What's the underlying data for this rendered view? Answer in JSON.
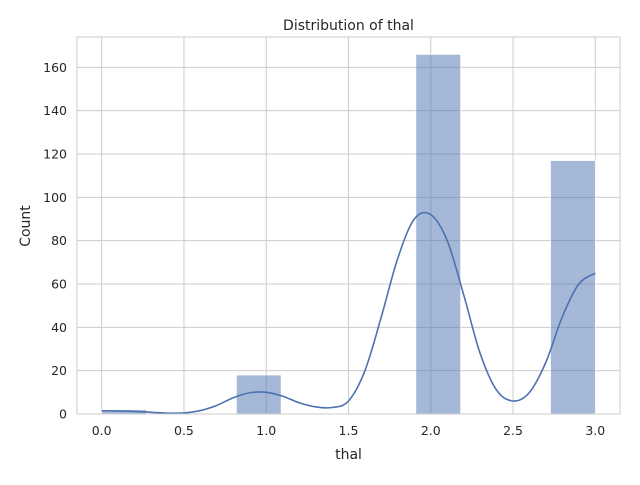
{
  "chart_data": {
    "type": "bar",
    "title": "Distribution of thal",
    "xlabel": "thal",
    "ylabel": "Count",
    "xlim": [
      -0.15,
      3.15
    ],
    "ylim": [
      0,
      174
    ],
    "grid": true,
    "x_ticks": [
      0.0,
      0.5,
      1.0,
      1.5,
      2.0,
      2.5,
      3.0
    ],
    "x_tick_labels": [
      "0.0",
      "0.5",
      "1.0",
      "1.5",
      "2.0",
      "2.5",
      "3.0"
    ],
    "y_ticks": [
      0,
      20,
      40,
      60,
      80,
      100,
      120,
      140,
      160
    ],
    "y_tick_labels": [
      "0",
      "20",
      "40",
      "60",
      "80",
      "100",
      "120",
      "140",
      "160"
    ],
    "bars": [
      {
        "x0": 0.0,
        "x1": 0.2727,
        "value": 2
      },
      {
        "x0": 0.8182,
        "x1": 1.0909,
        "value": 18
      },
      {
        "x0": 1.9091,
        "x1": 2.1818,
        "value": 166
      },
      {
        "x0": 2.7273,
        "x1": 3.0,
        "value": 117
      }
    ],
    "kde": {
      "x": [
        0.0,
        0.1,
        0.2,
        0.3,
        0.4,
        0.5,
        0.6,
        0.7,
        0.8,
        0.9,
        1.0,
        1.1,
        1.2,
        1.3,
        1.4,
        1.5,
        1.6,
        1.7,
        1.8,
        1.9,
        2.0,
        2.1,
        2.2,
        2.3,
        2.4,
        2.5,
        2.6,
        2.7,
        2.8,
        2.9,
        3.0
      ],
      "y": [
        1.5,
        1.4,
        1.2,
        0.8,
        0.4,
        0.5,
        1.6,
        4.0,
        7.5,
        9.8,
        10.0,
        8.2,
        5.2,
        3.3,
        3.0,
        6.0,
        20,
        45,
        72,
        90,
        92,
        80,
        55,
        28,
        11,
        6,
        10,
        24,
        45,
        60,
        65
      ]
    },
    "colors": {
      "bar_fill": "#4c72b0",
      "bar_opacity": 0.5,
      "line": "#4c72b0",
      "grid": "#cccccc",
      "axes_edge": "#cccccc"
    }
  }
}
